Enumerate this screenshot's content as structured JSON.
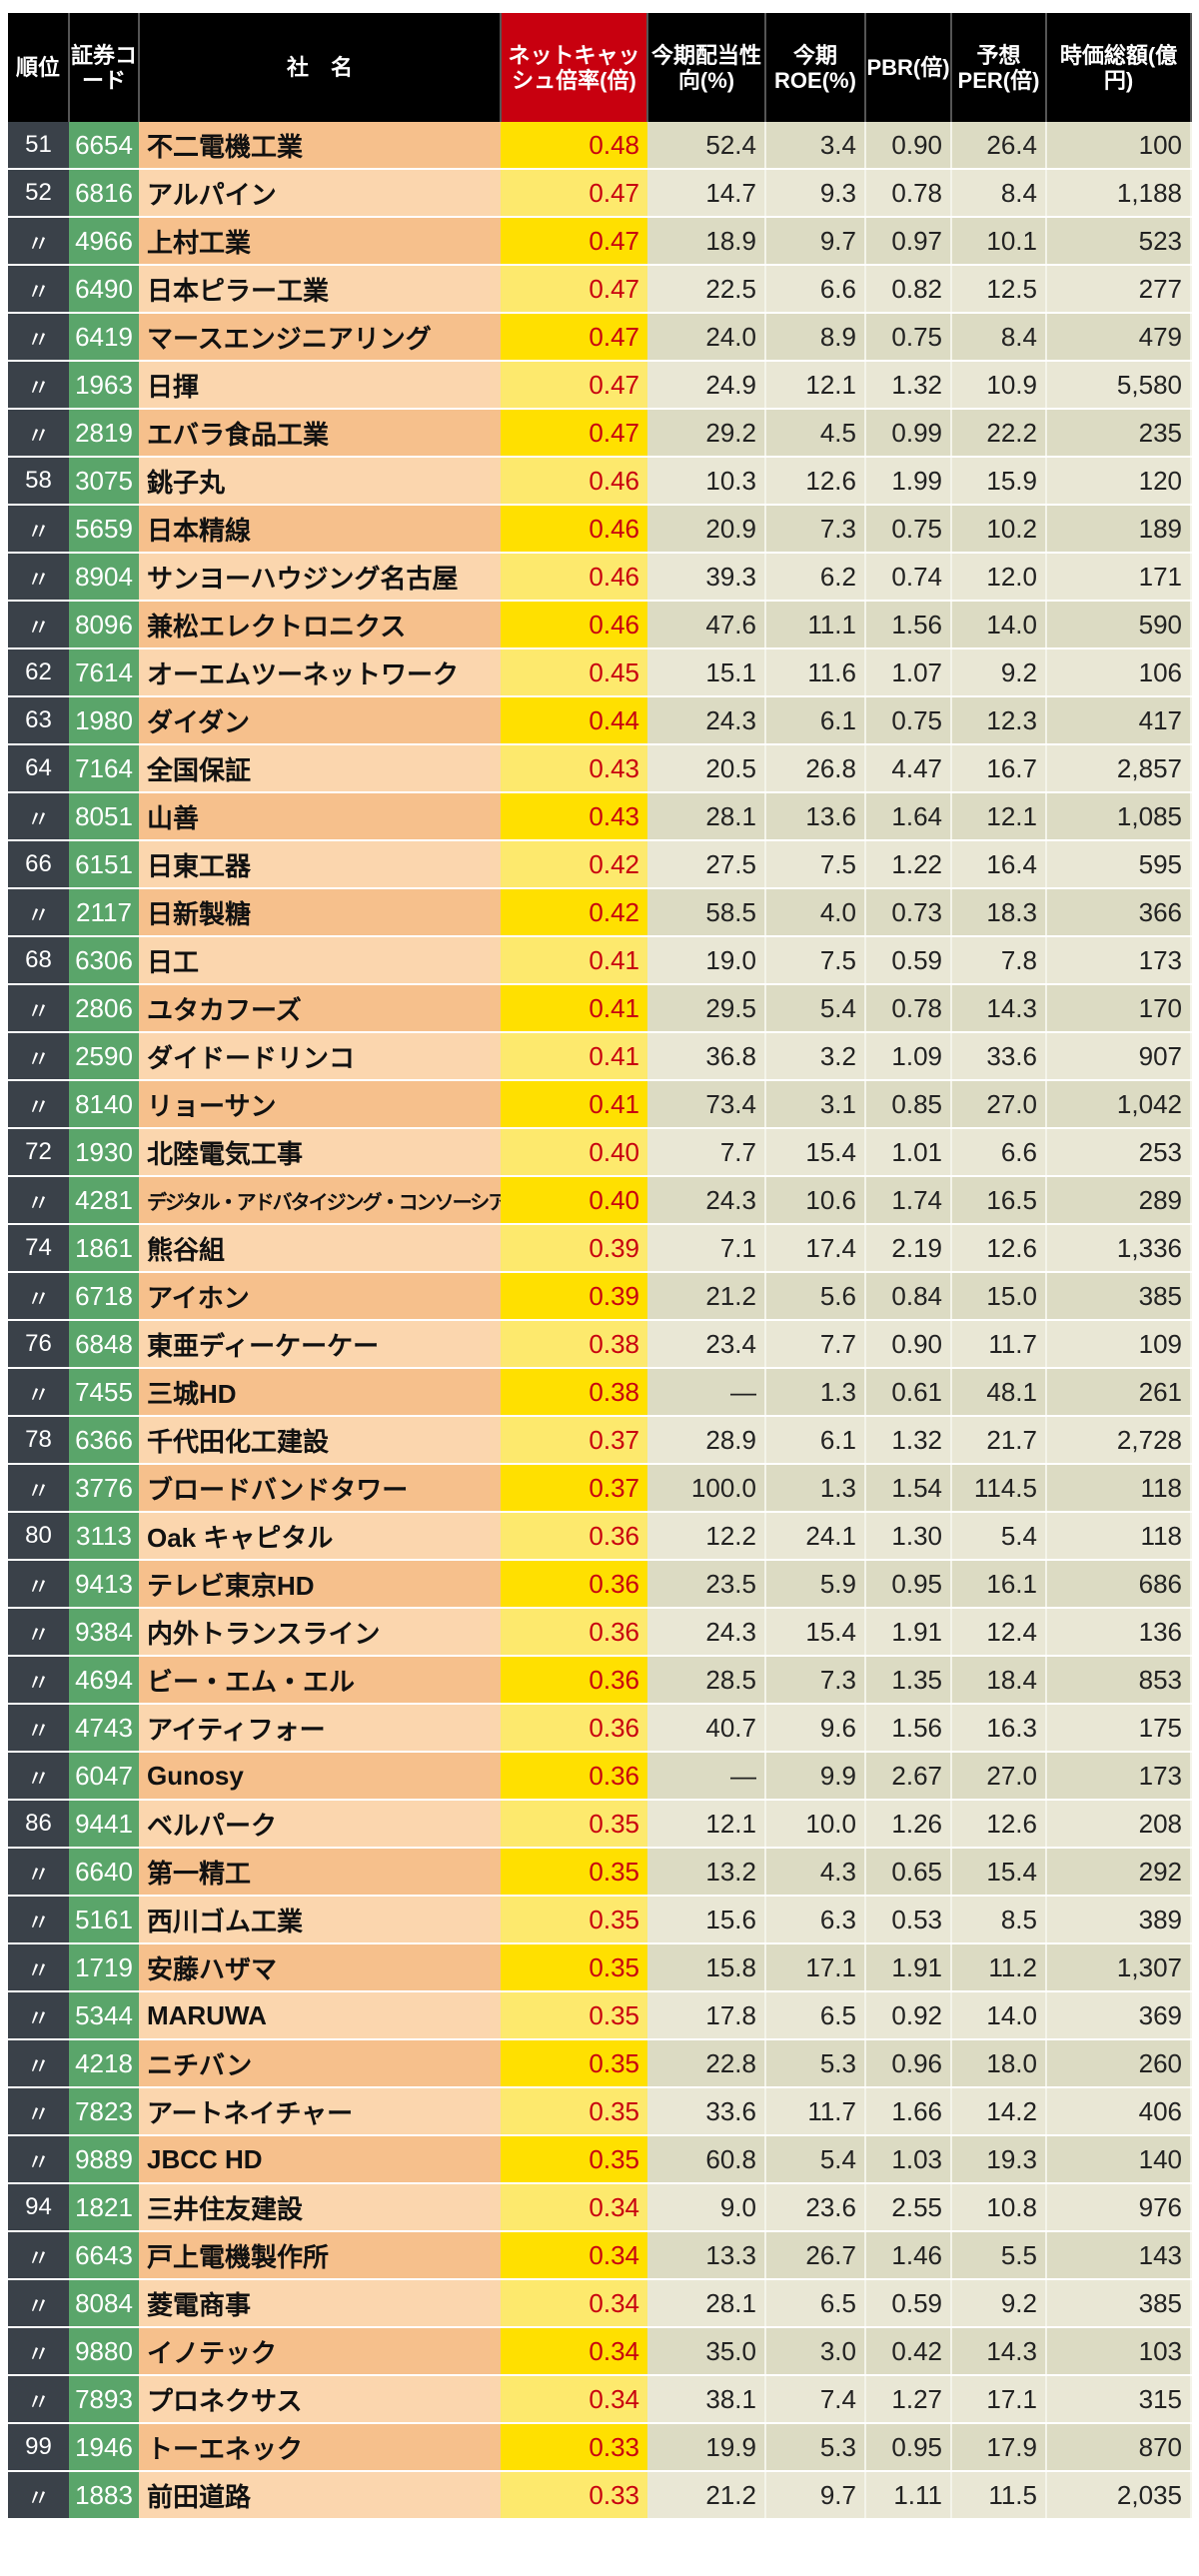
{
  "headers": [
    "順位",
    "証券コード",
    "社　名",
    "ネットキャッシュ倍率(倍)",
    "今期配当性向(%)",
    "今期ROE(%)",
    "PBR(倍)",
    "予想PER(倍)",
    "時価総額(億円)"
  ],
  "colors": {
    "header": "#000000",
    "ratio_header": "#c8000f",
    "ratio_text": "#c8000f",
    "rank_bg": "#3a4149",
    "code_bg": "#5aa56a",
    "name_bg": "#f6c08c",
    "ratio_bg": "#ffe000",
    "num_bg": "#dcdbc3"
  },
  "rows": [
    [
      "51",
      "6654",
      "不二電機工業",
      "0.48",
      "52.4",
      "3.4",
      "0.90",
      "26.4",
      "100"
    ],
    [
      "52",
      "6816",
      "アルパイン",
      "0.47",
      "14.7",
      "9.3",
      "0.78",
      "8.4",
      "1,188"
    ],
    [
      "〃",
      "4966",
      "上村工業",
      "0.47",
      "18.9",
      "9.7",
      "0.97",
      "10.1",
      "523"
    ],
    [
      "〃",
      "6490",
      "日本ピラー工業",
      "0.47",
      "22.5",
      "6.6",
      "0.82",
      "12.5",
      "277"
    ],
    [
      "〃",
      "6419",
      "マースエンジニアリング",
      "0.47",
      "24.0",
      "8.9",
      "0.75",
      "8.4",
      "479"
    ],
    [
      "〃",
      "1963",
      "日揮",
      "0.47",
      "24.9",
      "12.1",
      "1.32",
      "10.9",
      "5,580"
    ],
    [
      "〃",
      "2819",
      "エバラ食品工業",
      "0.47",
      "29.2",
      "4.5",
      "0.99",
      "22.2",
      "235"
    ],
    [
      "58",
      "3075",
      "銚子丸",
      "0.46",
      "10.3",
      "12.6",
      "1.99",
      "15.9",
      "120"
    ],
    [
      "〃",
      "5659",
      "日本精線",
      "0.46",
      "20.9",
      "7.3",
      "0.75",
      "10.2",
      "189"
    ],
    [
      "〃",
      "8904",
      "サンヨーハウジング名古屋",
      "0.46",
      "39.3",
      "6.2",
      "0.74",
      "12.0",
      "171"
    ],
    [
      "〃",
      "8096",
      "兼松エレクトロニクス",
      "0.46",
      "47.6",
      "11.1",
      "1.56",
      "14.0",
      "590"
    ],
    [
      "62",
      "7614",
      "オーエムツーネットワーク",
      "0.45",
      "15.1",
      "11.6",
      "1.07",
      "9.2",
      "106"
    ],
    [
      "63",
      "1980",
      "ダイダン",
      "0.44",
      "24.3",
      "6.1",
      "0.75",
      "12.3",
      "417"
    ],
    [
      "64",
      "7164",
      "全国保証",
      "0.43",
      "20.5",
      "26.8",
      "4.47",
      "16.7",
      "2,857"
    ],
    [
      "〃",
      "8051",
      "山善",
      "0.43",
      "28.1",
      "13.6",
      "1.64",
      "12.1",
      "1,085"
    ],
    [
      "66",
      "6151",
      "日東工器",
      "0.42",
      "27.5",
      "7.5",
      "1.22",
      "16.4",
      "595"
    ],
    [
      "〃",
      "2117",
      "日新製糖",
      "0.42",
      "58.5",
      "4.0",
      "0.73",
      "18.3",
      "366"
    ],
    [
      "68",
      "6306",
      "日工",
      "0.41",
      "19.0",
      "7.5",
      "0.59",
      "7.8",
      "173"
    ],
    [
      "〃",
      "2806",
      "ユタカフーズ",
      "0.41",
      "29.5",
      "5.4",
      "0.78",
      "14.3",
      "170"
    ],
    [
      "〃",
      "2590",
      "ダイドードリンコ",
      "0.41",
      "36.8",
      "3.2",
      "1.09",
      "33.6",
      "907"
    ],
    [
      "〃",
      "8140",
      "リョーサン",
      "0.41",
      "73.4",
      "3.1",
      "0.85",
      "27.0",
      "1,042"
    ],
    [
      "72",
      "1930",
      "北陸電気工事",
      "0.40",
      "7.7",
      "15.4",
      "1.01",
      "6.6",
      "253"
    ],
    [
      "〃",
      "4281",
      "デジタル・アドバタイジング・コンソーシアム",
      "0.40",
      "24.3",
      "10.6",
      "1.74",
      "16.5",
      "289"
    ],
    [
      "74",
      "1861",
      "熊谷組",
      "0.39",
      "7.1",
      "17.4",
      "2.19",
      "12.6",
      "1,336"
    ],
    [
      "〃",
      "6718",
      "アイホン",
      "0.39",
      "21.2",
      "5.6",
      "0.84",
      "15.0",
      "385"
    ],
    [
      "76",
      "6848",
      "東亜ディーケーケー",
      "0.38",
      "23.4",
      "7.7",
      "0.90",
      "11.7",
      "109"
    ],
    [
      "〃",
      "7455",
      "三城HD",
      "0.38",
      "—",
      "1.3",
      "0.61",
      "48.1",
      "261"
    ],
    [
      "78",
      "6366",
      "千代田化工建設",
      "0.37",
      "28.9",
      "6.1",
      "1.32",
      "21.7",
      "2,728"
    ],
    [
      "〃",
      "3776",
      "ブロードバンドタワー",
      "0.37",
      "100.0",
      "1.3",
      "1.54",
      "114.5",
      "118"
    ],
    [
      "80",
      "3113",
      "Oak キャピタル",
      "0.36",
      "12.2",
      "24.1",
      "1.30",
      "5.4",
      "118"
    ],
    [
      "〃",
      "9413",
      "テレビ東京HD",
      "0.36",
      "23.5",
      "5.9",
      "0.95",
      "16.1",
      "686"
    ],
    [
      "〃",
      "9384",
      "内外トランスライン",
      "0.36",
      "24.3",
      "15.4",
      "1.91",
      "12.4",
      "136"
    ],
    [
      "〃",
      "4694",
      "ビー・エム・エル",
      "0.36",
      "28.5",
      "7.3",
      "1.35",
      "18.4",
      "853"
    ],
    [
      "〃",
      "4743",
      "アイティフォー",
      "0.36",
      "40.7",
      "9.6",
      "1.56",
      "16.3",
      "175"
    ],
    [
      "〃",
      "6047",
      "Gunosy",
      "0.36",
      "—",
      "9.9",
      "2.67",
      "27.0",
      "173"
    ],
    [
      "86",
      "9441",
      "ベルパーク",
      "0.35",
      "12.1",
      "10.0",
      "1.26",
      "12.6",
      "208"
    ],
    [
      "〃",
      "6640",
      "第一精工",
      "0.35",
      "13.2",
      "4.3",
      "0.65",
      "15.4",
      "292"
    ],
    [
      "〃",
      "5161",
      "西川ゴム工業",
      "0.35",
      "15.6",
      "6.3",
      "0.53",
      "8.5",
      "389"
    ],
    [
      "〃",
      "1719",
      "安藤ハザマ",
      "0.35",
      "15.8",
      "17.1",
      "1.91",
      "11.2",
      "1,307"
    ],
    [
      "〃",
      "5344",
      "MARUWA",
      "0.35",
      "17.8",
      "6.5",
      "0.92",
      "14.0",
      "369"
    ],
    [
      "〃",
      "4218",
      "ニチバン",
      "0.35",
      "22.8",
      "5.3",
      "0.96",
      "18.0",
      "260"
    ],
    [
      "〃",
      "7823",
      "アートネイチャー",
      "0.35",
      "33.6",
      "11.7",
      "1.66",
      "14.2",
      "406"
    ],
    [
      "〃",
      "9889",
      "JBCC HD",
      "0.35",
      "60.8",
      "5.4",
      "1.03",
      "19.3",
      "140"
    ],
    [
      "94",
      "1821",
      "三井住友建設",
      "0.34",
      "9.0",
      "23.6",
      "2.55",
      "10.8",
      "976"
    ],
    [
      "〃",
      "6643",
      "戸上電機製作所",
      "0.34",
      "13.3",
      "26.7",
      "1.46",
      "5.5",
      "143"
    ],
    [
      "〃",
      "8084",
      "菱電商事",
      "0.34",
      "28.1",
      "6.5",
      "0.59",
      "9.2",
      "385"
    ],
    [
      "〃",
      "9880",
      "イノテック",
      "0.34",
      "35.0",
      "3.0",
      "0.42",
      "14.3",
      "103"
    ],
    [
      "〃",
      "7893",
      "プロネクサス",
      "0.34",
      "38.1",
      "7.4",
      "1.27",
      "17.1",
      "315"
    ],
    [
      "99",
      "1946",
      "トーエネック",
      "0.33",
      "19.9",
      "5.3",
      "0.95",
      "17.9",
      "870"
    ],
    [
      "〃",
      "1883",
      "前田道路",
      "0.33",
      "21.2",
      "9.7",
      "1.11",
      "11.5",
      "2,035"
    ]
  ]
}
